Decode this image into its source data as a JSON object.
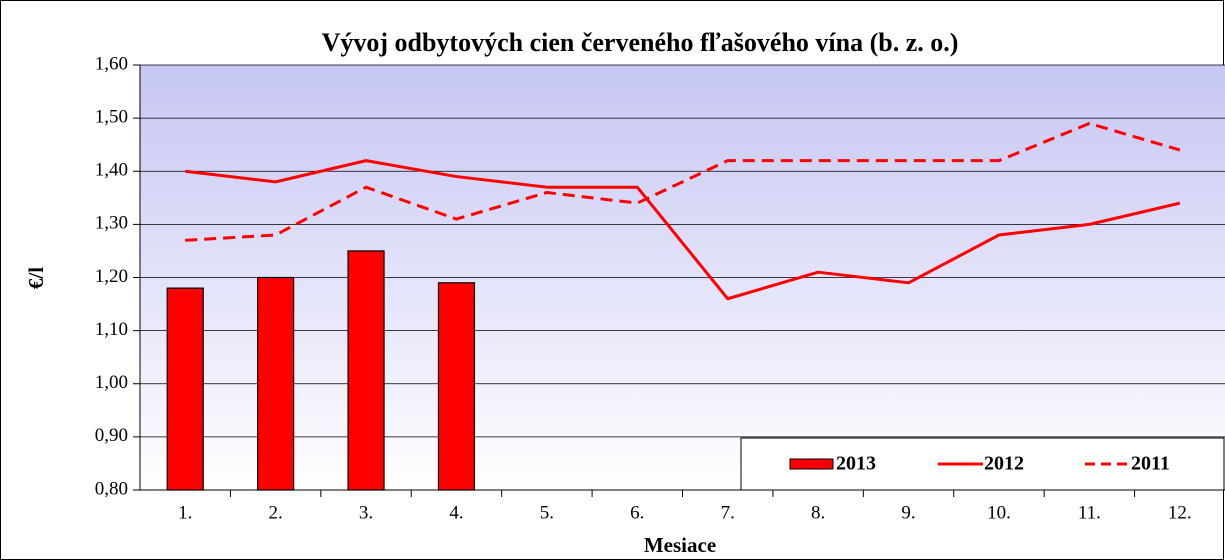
{
  "chart_data": {
    "type": "bar_line",
    "title": "Vývoj odbytových cien červeného fľašového vína (b. z. o.)",
    "x_label": "Mesiace",
    "y_label": "€/l",
    "categories": [
      "1.",
      "2.",
      "3.",
      "4.",
      "5.",
      "6.",
      "7.",
      "8.",
      "9.",
      "10.",
      "11.",
      "12."
    ],
    "series": [
      {
        "name": "2013",
        "type": "bar",
        "color": "#ff0000",
        "values": [
          1.18,
          1.2,
          1.25,
          1.19,
          null,
          null,
          null,
          null,
          null,
          null,
          null,
          null
        ]
      },
      {
        "name": "2012",
        "type": "line",
        "color": "#ff0000",
        "dash": false,
        "values": [
          1.4,
          1.38,
          1.42,
          1.39,
          1.37,
          1.37,
          1.16,
          1.21,
          1.19,
          1.28,
          1.3,
          1.34
        ]
      },
      {
        "name": "2011",
        "type": "line",
        "color": "#ff0000",
        "dash": true,
        "values": [
          1.27,
          1.28,
          1.37,
          1.31,
          1.36,
          1.34,
          1.42,
          1.42,
          1.42,
          1.42,
          1.49,
          1.44
        ]
      }
    ],
    "ylim": [
      0.8,
      1.6
    ],
    "yticks": [
      {
        "value": 0.8,
        "label": "0,80"
      },
      {
        "value": 0.9,
        "label": "0,90"
      },
      {
        "value": 1.0,
        "label": "1,00"
      },
      {
        "value": 1.1,
        "label": "1,10"
      },
      {
        "value": 1.2,
        "label": "1,20"
      },
      {
        "value": 1.3,
        "label": "1,30"
      },
      {
        "value": 1.4,
        "label": "1,40"
      },
      {
        "value": 1.5,
        "label": "1,50"
      },
      {
        "value": 1.6,
        "label": "1,60"
      }
    ],
    "grid": true,
    "legend": "lower right"
  }
}
